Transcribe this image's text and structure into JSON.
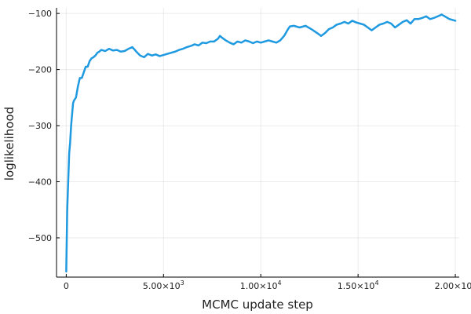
{
  "chart_data": {
    "type": "line",
    "title": "",
    "xlabel": "MCMC update step",
    "ylabel": "loglikelihood",
    "xlim": [
      -500,
      20200
    ],
    "ylim": [
      -570,
      -90
    ],
    "grid": true,
    "legend": "none",
    "line_color": "#1f9ae0",
    "x_ticks": [
      {
        "value": 0,
        "mantissa": "0",
        "exponent": ""
      },
      {
        "value": 5000,
        "mantissa": "5.00×10",
        "exponent": "3"
      },
      {
        "value": 10000,
        "mantissa": "1.00×10",
        "exponent": "4"
      },
      {
        "value": 15000,
        "mantissa": "1.50×10",
        "exponent": "4"
      },
      {
        "value": 20000,
        "mantissa": "2.00×10",
        "exponent": "4"
      }
    ],
    "y_ticks": [
      {
        "value": -100,
        "label": "−100"
      },
      {
        "value": -200,
        "label": "−200"
      },
      {
        "value": -300,
        "label": "−300"
      },
      {
        "value": -400,
        "label": "−400"
      },
      {
        "value": -500,
        "label": "−500"
      }
    ],
    "series": [
      {
        "x": [
          0,
          50,
          100,
          150,
          200,
          250,
          300,
          350,
          400,
          500,
          600,
          700,
          800,
          900,
          1000,
          1100,
          1200,
          1300,
          1400,
          1500,
          1600,
          1700,
          1800,
          2000,
          2200,
          2400,
          2600,
          2800,
          3000,
          3200,
          3400,
          3600,
          3800,
          4000,
          4200,
          4400,
          4600,
          4800,
          5000,
          5200,
          5400,
          5600,
          5800,
          6000,
          6200,
          6400,
          6600,
          6800,
          7000,
          7200,
          7400,
          7600,
          7800,
          7900,
          8000,
          8200,
          8400,
          8600,
          8800,
          9000,
          9200,
          9400,
          9600,
          9800,
          10000,
          10200,
          10400,
          10600,
          10800,
          11000,
          11200,
          11400,
          11500,
          11700,
          12000,
          12300,
          12600,
          12900,
          13100,
          13300,
          13500,
          13700,
          13900,
          14100,
          14300,
          14500,
          14700,
          14900,
          15100,
          15300,
          15500,
          15700,
          15900,
          16100,
          16300,
          16500,
          16700,
          16900,
          17100,
          17300,
          17500,
          17700,
          17900,
          18100,
          18300,
          18500,
          18700,
          18900,
          19100,
          19300,
          19500,
          19700,
          19900,
          20000
        ],
        "y": [
          -560,
          -450,
          -400,
          -350,
          -330,
          -300,
          -280,
          -260,
          -255,
          -250,
          -230,
          -215,
          -215,
          -205,
          -195,
          -195,
          -185,
          -180,
          -178,
          -175,
          -170,
          -168,
          -165,
          -167,
          -163,
          -166,
          -165,
          -168,
          -167,
          -163,
          -160,
          -168,
          -175,
          -178,
          -172,
          -175,
          -173,
          -176,
          -174,
          -172,
          -170,
          -168,
          -165,
          -163,
          -160,
          -158,
          -155,
          -157,
          -152,
          -153,
          -150,
          -150,
          -145,
          -140,
          -143,
          -148,
          -152,
          -155,
          -150,
          -152,
          -148,
          -150,
          -153,
          -150,
          -152,
          -150,
          -148,
          -150,
          -152,
          -148,
          -140,
          -128,
          -123,
          -122,
          -125,
          -122,
          -128,
          -135,
          -140,
          -135,
          -128,
          -125,
          -120,
          -118,
          -115,
          -118,
          -113,
          -116,
          -118,
          -120,
          -125,
          -130,
          -125,
          -120,
          -118,
          -115,
          -118,
          -125,
          -120,
          -115,
          -112,
          -118,
          -110,
          -110,
          -108,
          -105,
          -110,
          -108,
          -105,
          -102,
          -106,
          -110,
          -112,
          -113
        ]
      }
    ]
  }
}
